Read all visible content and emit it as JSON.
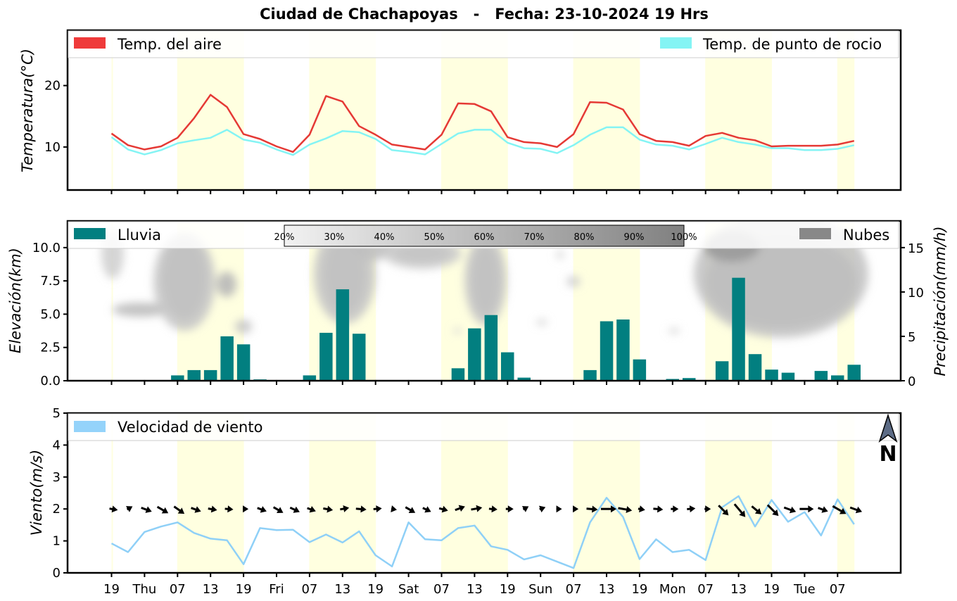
{
  "chart_title": "Ciudad de Chachapoyas   -   Fecha: 23-10-2024 19 Hrs",
  "x_tick_labels": [
    "19",
    "Thu",
    "07",
    "13",
    "19",
    "Fri",
    "07",
    "13",
    "19",
    "Sat",
    "07",
    "13",
    "19",
    "Sun",
    "07",
    "13",
    "19",
    "Mon",
    "07",
    "13",
    "19",
    "Tue",
    "07"
  ],
  "daytime_shading_color": "#ffffe0",
  "chart_data": [
    {
      "type": "line",
      "ylabel": "Temperatura(°C)",
      "ylim": [
        3,
        29
      ],
      "yticks": [
        10,
        20
      ],
      "legend_placement": "top",
      "x_steps_3h": [
        0,
        1,
        2,
        3,
        4,
        5,
        6,
        7,
        8,
        9,
        10,
        11,
        12,
        13,
        14,
        15,
        16,
        17,
        18,
        19,
        20,
        21,
        22,
        23,
        24,
        25,
        26,
        27,
        28,
        29,
        30,
        31,
        32,
        33,
        34,
        35,
        36,
        37,
        38,
        39,
        40,
        41,
        42,
        43,
        44,
        45
      ],
      "series": [
        {
          "name": "Temp. del aire",
          "color": "#e53935",
          "values": [
            12.2,
            10.3,
            9.6,
            10.1,
            11.5,
            14.7,
            18.5,
            16.5,
            12.1,
            11.3,
            10.1,
            9.2,
            12.0,
            18.3,
            17.4,
            13.4,
            12.0,
            10.4,
            10.0,
            9.6,
            12.0,
            17.1,
            17.0,
            15.8,
            11.6,
            10.8,
            10.6,
            10.0,
            12.1,
            17.3,
            17.2,
            16.1,
            12.1,
            11.0,
            10.8,
            10.2,
            11.8,
            12.3,
            11.5,
            11.1,
            10.1,
            10.2,
            10.2,
            10.2,
            10.4,
            11.0
          ]
        },
        {
          "name": "Temp. de punto de rocio",
          "color": "#84f4f4",
          "values": [
            11.6,
            9.6,
            8.8,
            9.5,
            10.6,
            11.1,
            11.5,
            12.8,
            11.2,
            10.7,
            9.6,
            8.7,
            10.4,
            11.4,
            12.6,
            12.4,
            11.3,
            9.5,
            9.2,
            8.8,
            10.5,
            12.2,
            12.8,
            12.8,
            10.7,
            9.8,
            9.7,
            9.0,
            10.3,
            12.0,
            13.2,
            13.2,
            11.2,
            10.4,
            10.2,
            9.6,
            10.5,
            11.5,
            10.8,
            10.4,
            9.8,
            9.8,
            9.5,
            9.5,
            9.7,
            10.3
          ]
        }
      ]
    },
    {
      "type": "bar",
      "ylabel": "Elevación(km)",
      "ylabel_right": "Precipitación(mm/h)",
      "ylim": [
        0,
        12
      ],
      "yticks": [
        "0.0",
        "2.5",
        "5.0",
        "7.5",
        "10.0"
      ],
      "ylim_right": [
        0,
        18
      ],
      "yticks_right": [
        "0",
        "5",
        "10",
        "15"
      ],
      "legend_placement": "top",
      "colorbar_labels": [
        "20%",
        "30%",
        "40%",
        "50%",
        "60%",
        "70%",
        "80%",
        "90%",
        "100%"
      ],
      "series": [
        {
          "name": "Lluvia",
          "color": "#027f80",
          "values": [
            0,
            0,
            0,
            0,
            0.6,
            1.2,
            1.2,
            5.0,
            4.1,
            0.15,
            0,
            0,
            0.6,
            5.4,
            10.3,
            5.3,
            0,
            0,
            0,
            0,
            0,
            1.4,
            5.9,
            7.4,
            3.2,
            0.35,
            0,
            0,
            0,
            1.2,
            6.7,
            6.9,
            2.4,
            0,
            0.2,
            0.3,
            0,
            2.2,
            11.6,
            3.0,
            1.25,
            0.9,
            0,
            1.1,
            0.6,
            1.8
          ]
        },
        {
          "name": "Nubes",
          "color": "#888888"
        }
      ]
    },
    {
      "type": "line",
      "ylabel": "Viento(m/s)",
      "ylim": [
        0,
        5
      ],
      "yticks": [
        "0",
        "1",
        "2",
        "3",
        "4",
        "5"
      ],
      "legend_placement": "top-left",
      "north_label": "N",
      "series": [
        {
          "name": "Velocidad de viento",
          "color": "#8fd0f7",
          "values": [
            0.92,
            0.65,
            1.28,
            1.45,
            1.58,
            1.25,
            1.07,
            1.02,
            0.27,
            1.4,
            1.34,
            1.35,
            0.96,
            1.2,
            0.95,
            1.3,
            0.55,
            0.2,
            1.58,
            1.05,
            1.02,
            1.4,
            1.48,
            0.83,
            0.72,
            0.42,
            0.55,
            0.35,
            0.15,
            1.58,
            2.35,
            1.75,
            0.43,
            1.05,
            0.65,
            0.72,
            0.4,
            2.05,
            2.4,
            1.45,
            2.28,
            1.6,
            1.9,
            1.17,
            2.3,
            1.52
          ]
        }
      ]
    }
  ]
}
